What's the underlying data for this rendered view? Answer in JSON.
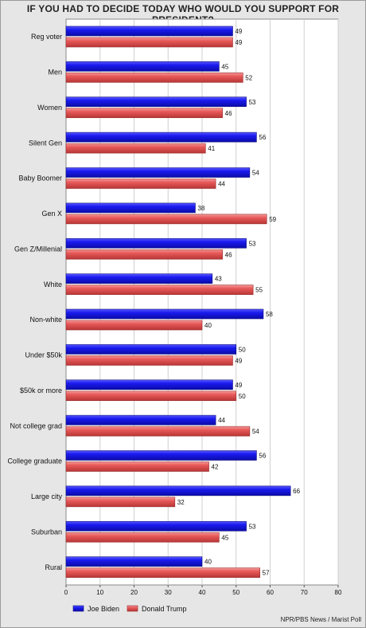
{
  "colors": {
    "biden": "#1f1fe6",
    "trump": "#e85a5a",
    "plot_background": "#ffffff",
    "frame_background": "#e6e6e6",
    "grid": "#cfcfcf"
  },
  "chart_data": {
    "type": "bar",
    "orientation": "horizontal",
    "title": "IF YOU HAD TO DECIDE TODAY WHO WOULD YOU SUPPORT FOR PRESIDENT?",
    "categories": [
      "Reg voter",
      "Men",
      "Women",
      "Silent Gen",
      "Baby Boomer",
      "Gen X",
      "Gen Z/Millenial",
      "White",
      "Non-white",
      "Under $50k",
      "$50k or more",
      "Not college grad",
      "College graduate",
      "Large city",
      "Suburban",
      "Rural"
    ],
    "series": [
      {
        "name": "Joe Biden",
        "color": "#1f1fe6",
        "values": [
          49,
          45,
          53,
          56,
          54,
          38,
          53,
          43,
          58,
          50,
          49,
          44,
          56,
          66,
          53,
          40
        ]
      },
      {
        "name": "Donald Trump",
        "color": "#e85a5a",
        "values": [
          49,
          52,
          46,
          41,
          44,
          59,
          46,
          55,
          40,
          49,
          50,
          54,
          42,
          32,
          45,
          57
        ]
      }
    ],
    "xlim": [
      0,
      80
    ],
    "xticks": [
      0,
      10,
      20,
      30,
      40,
      50,
      60,
      70,
      80
    ],
    "xlabel": "",
    "ylabel": "",
    "grid": true,
    "legend_position": "bottom-left",
    "source": "NPR/PBS News / Marist Poll"
  }
}
